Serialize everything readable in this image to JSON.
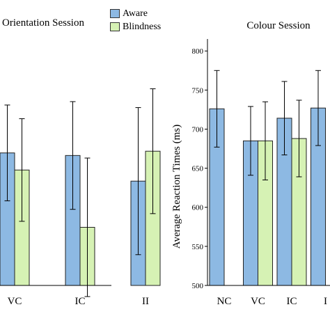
{
  "colors": {
    "aware": "#8db9e3",
    "blindness": "#d6f2b4",
    "outline": "#222222"
  },
  "legend": {
    "aware_label": "Aware",
    "blindness_label": "Blindness"
  },
  "chart_data": [
    {
      "type": "bar",
      "title": "Orientation Session",
      "categories": [
        "",
        "VC",
        "IC",
        "II"
      ],
      "series": [
        {
          "name": "Aware",
          "values": [
            null,
            700,
            697,
            667
          ],
          "errors": [
            null,
            56,
            63,
            86
          ]
        },
        {
          "name": "Blindness",
          "values": [
            null,
            680,
            613,
            702
          ],
          "errors": [
            null,
            60,
            81,
            73
          ]
        }
      ],
      "xlabel": "",
      "ylabel": "",
      "ylim": [
        545,
        830
      ],
      "grid": false
    },
    {
      "type": "bar",
      "title": "Colour Session",
      "categories": [
        "NC",
        "VC",
        "IC",
        "I"
      ],
      "series": [
        {
          "name": "Aware",
          "values": [
            726,
            685,
            714,
            727
          ],
          "errors": [
            49,
            44,
            47,
            48
          ]
        },
        {
          "name": "Blindness",
          "values": [
            null,
            685,
            688,
            null
          ],
          "errors": [
            null,
            50,
            49,
            null
          ]
        }
      ],
      "xlabel": "",
      "ylabel": "Average Reaction Times (ms)",
      "ylim": [
        500,
        810
      ],
      "yticks": [
        500,
        550,
        600,
        650,
        700,
        750,
        800
      ],
      "grid": false
    }
  ]
}
